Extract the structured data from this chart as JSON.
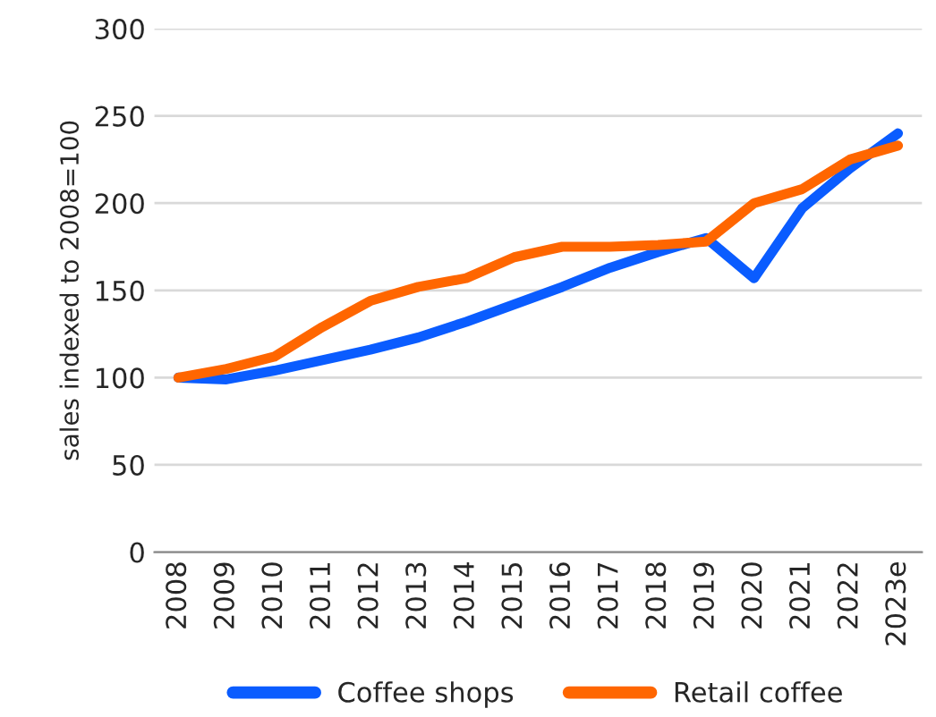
{
  "chart_data": {
    "type": "line",
    "ylabel": "sales indexed to 2008=100",
    "categories": [
      "2008",
      "2009",
      "2010",
      "2011",
      "2012",
      "2013",
      "2014",
      "2015",
      "2016",
      "2017",
      "2018",
      "2019",
      "2020",
      "2021",
      "2022",
      "2023e"
    ],
    "series": [
      {
        "name": "Coffee shops",
        "color": "#0a5cff",
        "values": [
          100,
          99,
          104,
          110,
          116,
          123,
          132,
          142,
          152,
          163,
          172,
          180,
          157,
          197,
          220,
          240
        ]
      },
      {
        "name": "Retail coffee",
        "color": "#ff6600",
        "values": [
          100,
          105,
          112,
          129,
          144,
          152,
          157,
          169,
          175,
          175,
          176,
          178,
          200,
          208,
          225,
          233
        ]
      }
    ],
    "ylim": [
      0,
      300
    ],
    "yticks": [
      0,
      50,
      100,
      150,
      200,
      250,
      300
    ],
    "grid": "y",
    "legend": "bottom",
    "marker": "none",
    "line_style": "solid"
  }
}
